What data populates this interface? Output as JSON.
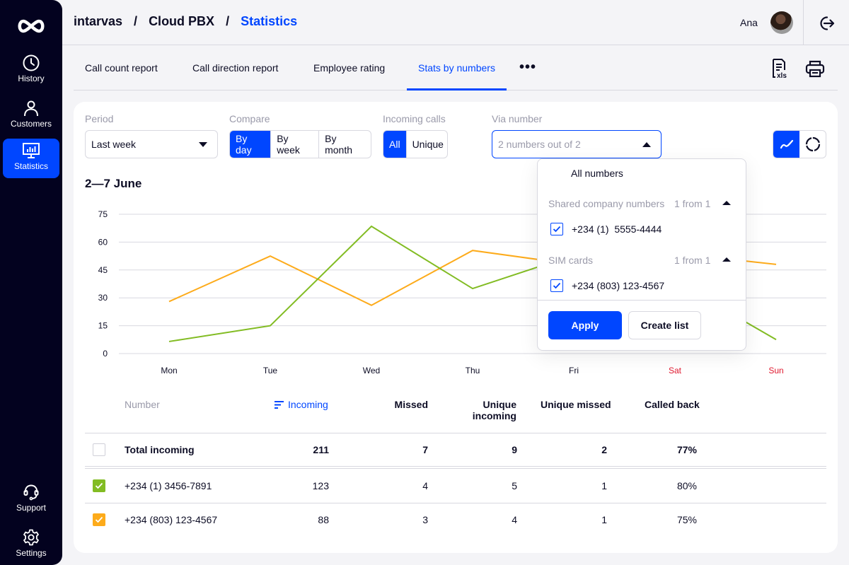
{
  "sidebar": {
    "logo": "infinity-logo",
    "items": [
      {
        "label": "History",
        "icon": "clock-icon",
        "active": false
      },
      {
        "label": "Customers",
        "icon": "user-icon",
        "active": false
      },
      {
        "label": "Statistics",
        "icon": "monitor-chart-icon",
        "active": true
      }
    ],
    "bottom_items": [
      {
        "label": "Support",
        "icon": "headset-icon"
      },
      {
        "label": "Settings",
        "icon": "gear-icon"
      }
    ]
  },
  "header": {
    "breadcrumb": [
      "intarvas",
      "Cloud PBX",
      "Statistics"
    ],
    "separator": "/",
    "user_name": "Ana",
    "logout_icon": "logout-icon"
  },
  "tabs": {
    "items": [
      {
        "label": "Call count report",
        "active": false
      },
      {
        "label": "Call direction report",
        "active": false
      },
      {
        "label": "Employee rating",
        "active": false
      },
      {
        "label": "Stats by numbers",
        "active": true
      }
    ],
    "more_label": "•••",
    "export_icon": "xls-export-icon",
    "print_icon": "print-icon",
    "export_icon_text": "xls"
  },
  "filters": {
    "period": {
      "label": "Period",
      "value": "Last week"
    },
    "compare": {
      "label": "Compare",
      "options": [
        "By day",
        "By week",
        "By month"
      ],
      "selected": "By day"
    },
    "incoming": {
      "label": "Incoming calls",
      "options": [
        "All",
        "Unique"
      ],
      "selected": "All"
    },
    "via_number": {
      "label": "Via number",
      "placeholder": "2 numbers out of 2",
      "open": true
    },
    "chart_type": {
      "options": [
        "line-chart-icon",
        "donut-chart-icon"
      ],
      "selected": "line-chart-icon"
    }
  },
  "date_range": "2—7 June",
  "dropdown": {
    "all_label": "All numbers",
    "groups": [
      {
        "name": "Shared company numbers",
        "count": "1 from 1",
        "items": [
          {
            "number": "+234 (1)  5555-4444",
            "checked": true
          }
        ]
      },
      {
        "name": "SIM cards",
        "count": "1 from 1",
        "items": [
          {
            "number": "+234 (803) 123-4567",
            "checked": true
          }
        ]
      }
    ],
    "apply_label": "Apply",
    "create_list_label": "Create list"
  },
  "chart_data": {
    "type": "line",
    "title": "",
    "xlabel": "",
    "ylabel": "",
    "categories": [
      "Mon",
      "Tue",
      "Wed",
      "Thu",
      "Fri",
      "Sat",
      "Sun"
    ],
    "weekend": [
      "Sat",
      "Sun"
    ],
    "yticks": [
      0,
      15,
      30,
      45,
      60,
      75
    ],
    "ylim": [
      0,
      75
    ],
    "grid": true,
    "series": [
      {
        "name": "+234 (803) 123-4567",
        "color": "#fdab1b",
        "values": [
          28,
          52.5,
          26,
          55.5,
          48,
          54,
          48
        ]
      },
      {
        "name": "+234 (1)  3456-7891",
        "color": "#82bc23",
        "values": [
          6.5,
          15,
          68.5,
          35,
          53,
          39,
          7.5
        ]
      }
    ]
  },
  "table": {
    "columns": [
      {
        "label": "Number"
      },
      {
        "label": "Incoming",
        "sorted": true
      },
      {
        "label": "Missed"
      },
      {
        "label": "Unique incoming",
        "line1": "Unique",
        "line2": "incoming"
      },
      {
        "label": "Unique missed"
      },
      {
        "label": "Called back"
      }
    ],
    "total": {
      "label": "Total incoming",
      "incoming": "211",
      "missed": "7",
      "unique_incoming": "9",
      "unique_missed": "2",
      "called_back": "77%",
      "checked": false
    },
    "rows": [
      {
        "number": "+234 (1)  3456-7891",
        "incoming": "123",
        "missed": "4",
        "unique_incoming": "5",
        "unique_missed": "1",
        "called_back": "80%",
        "color": "#82bc23",
        "checked": true
      },
      {
        "number": "+234 (803) 123-4567",
        "incoming": "88",
        "missed": "3",
        "unique_incoming": "4",
        "unique_missed": "1",
        "called_back": "75%",
        "color": "#fdab1b",
        "checked": true
      }
    ]
  },
  "colors": {
    "accent": "#0046ff",
    "sidebar_bg": "#03021f",
    "weekend_label": "#e0182e",
    "series_green": "#82bc23",
    "series_orange": "#fdab1b"
  }
}
